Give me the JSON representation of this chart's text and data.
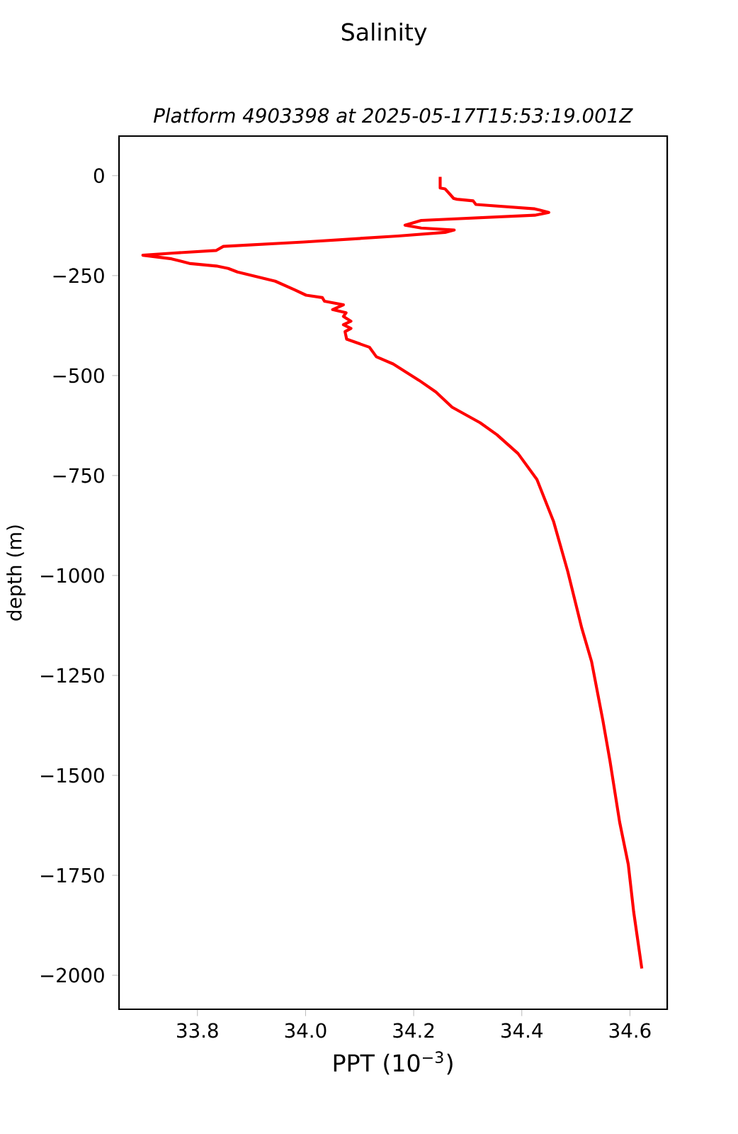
{
  "chart_data": {
    "type": "line",
    "title": "Salinity",
    "subtitle": "*Platform 4903398 at 2025-05-17T15:53:19.001Z*",
    "xlabel": "PPT (10$^{−3}$)",
    "ylabel": "depth (m)",
    "series": [
      {
        "color": "#ff0000",
        "x": [
          34.249,
          34.249,
          34.258,
          34.274,
          34.28,
          34.31,
          34.315,
          34.424,
          34.45,
          34.424,
          34.214,
          34.184,
          34.214,
          34.275,
          34.258,
          34.171,
          33.996,
          33.848,
          33.835,
          33.752,
          33.699,
          33.752,
          33.787,
          33.835,
          33.857,
          33.874,
          33.944,
          33.979,
          34.001,
          34.031,
          34.035,
          34.07,
          34.05,
          34.075,
          34.07,
          34.084,
          34.07,
          34.084,
          34.073,
          34.076,
          34.118,
          34.131,
          34.162,
          34.21,
          34.241,
          34.271,
          34.323,
          34.354,
          34.393,
          34.428,
          34.459,
          34.485,
          34.511,
          34.529,
          34.55,
          34.563,
          34.581,
          34.597,
          34.607,
          34.622
        ],
        "values": [
          -3,
          -31,
          -33,
          -57,
          -59,
          -63,
          -72,
          -83,
          -92,
          -99,
          -112,
          -124,
          -131,
          -136,
          -142,
          -151,
          -166,
          -177,
          -187,
          -194,
          -199,
          -208,
          -220,
          -226,
          -232,
          -241,
          -264,
          -285,
          -299,
          -305,
          -314,
          -323,
          -335,
          -343,
          -352,
          -364,
          -373,
          -382,
          -390,
          -409,
          -429,
          -453,
          -471,
          -512,
          -541,
          -579,
          -618,
          -648,
          -695,
          -760,
          -866,
          -990,
          -1132,
          -1215,
          -1363,
          -1463,
          -1617,
          -1723,
          -1842,
          -1983
        ]
      }
    ],
    "xlim": [
      33.655,
      34.669
    ],
    "ylim": [
      -2085,
      99
    ],
    "xticks": [
      {
        "value": 33.8,
        "label": "33.8"
      },
      {
        "value": 34.0,
        "label": "34.0"
      },
      {
        "value": 34.2,
        "label": "34.2"
      },
      {
        "value": 34.4,
        "label": "34.4"
      },
      {
        "value": 34.6,
        "label": "34.6"
      }
    ],
    "yticks": [
      0,
      {
        "value": -250,
        "label": "−250"
      },
      {
        "value": -500,
        "label": "−500"
      },
      {
        "value": -750,
        "label": "−750"
      },
      {
        "value": -1000,
        "label": "−1000"
      },
      {
        "value": -1250,
        "label": "−1250"
      },
      {
        "value": -1500,
        "label": "−1500"
      },
      {
        "value": -1750,
        "label": "−1750"
      },
      {
        "value": -2000,
        "label": "−2000"
      }
    ],
    "grid": false
  }
}
